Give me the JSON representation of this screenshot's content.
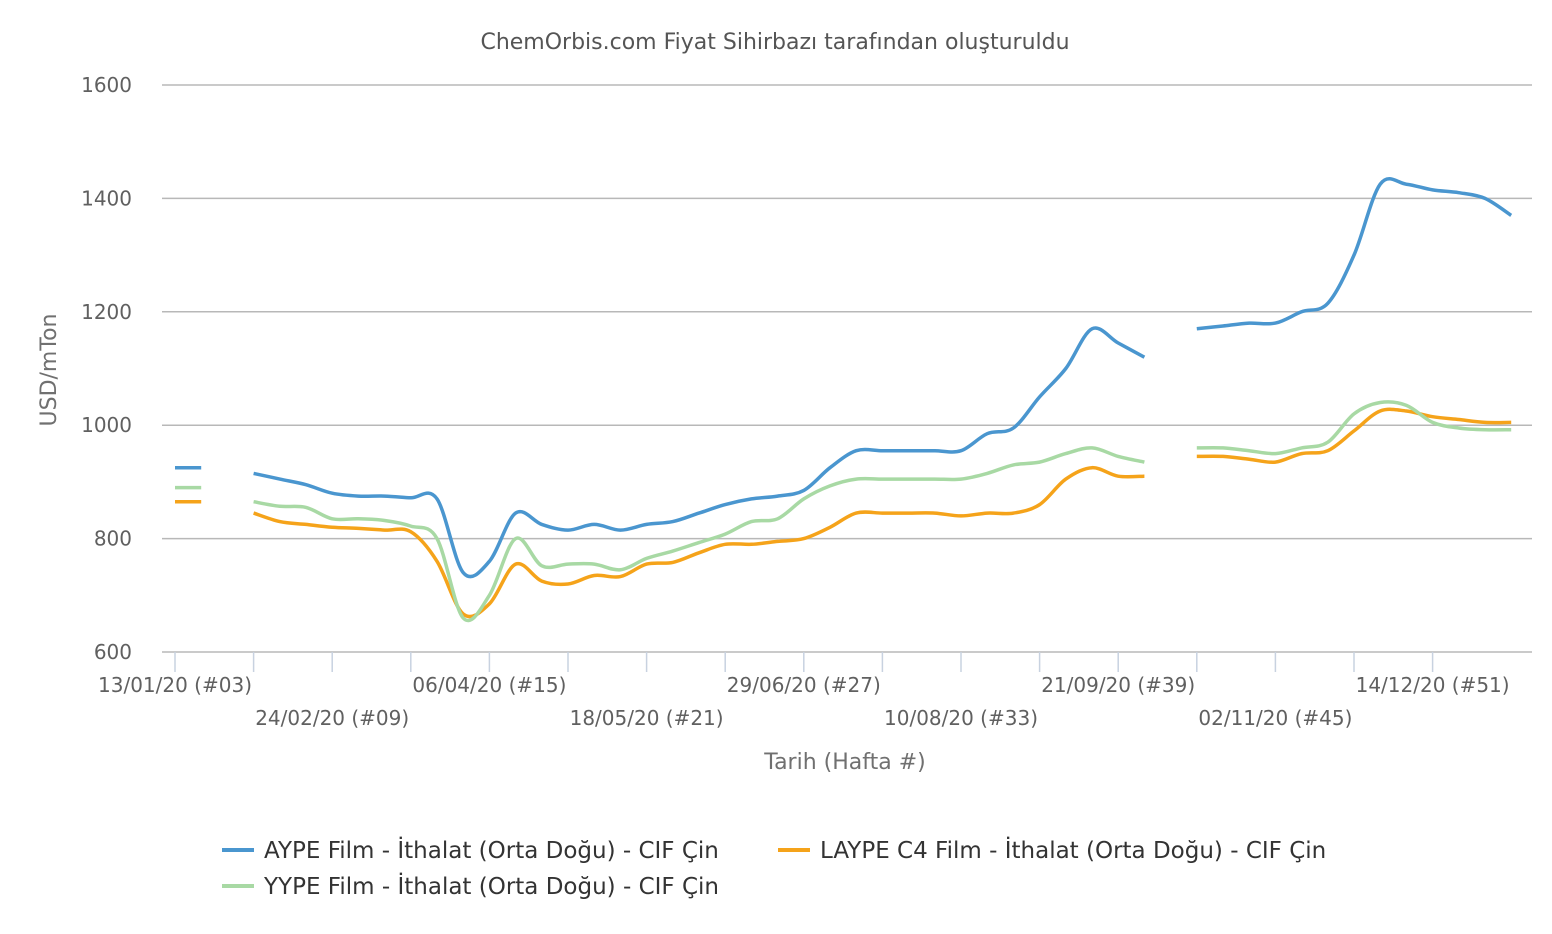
{
  "chart_data": {
    "type": "line",
    "title": "ChemOrbis.com Fiyat Sihirbazı tarafından oluşturuldu",
    "xlabel": "Tarih (Hafta #)",
    "ylabel": "USD/mTon",
    "ylim": [
      600,
      1600
    ],
    "yticks": [
      600,
      800,
      1000,
      1200,
      1400,
      1600
    ],
    "week_range": [
      3,
      52
    ],
    "x_tick_labels": [
      {
        "week": 3,
        "label": "13/01/20 (#03)",
        "row": 0
      },
      {
        "week": 9,
        "label": "24/02/20 (#09)",
        "row": 1
      },
      {
        "week": 15,
        "label": "06/04/20 (#15)",
        "row": 0
      },
      {
        "week": 21,
        "label": "18/05/20 (#21)",
        "row": 1
      },
      {
        "week": 27,
        "label": "29/06/20 (#27)",
        "row": 0
      },
      {
        "week": 33,
        "label": "10/08/20 (#33)",
        "row": 1
      },
      {
        "week": 39,
        "label": "21/09/20 (#39)",
        "row": 0
      },
      {
        "week": 45,
        "label": "02/11/20 (#45)",
        "row": 1
      },
      {
        "week": 51,
        "label": "14/12/20 (#51)",
        "row": 0
      }
    ],
    "legend_position": "bottom-center",
    "grid": true,
    "series": [
      {
        "name": "AYPE Film - İthalat (Orta Doğu) - CIF Çin",
        "color": "#4a96cf",
        "points": [
          [
            3,
            925
          ],
          [
            4,
            925
          ],
          null,
          [
            6,
            915
          ],
          [
            7,
            905
          ],
          [
            8,
            895
          ],
          [
            9,
            880
          ],
          [
            10,
            875
          ],
          [
            11,
            875
          ],
          [
            12,
            872
          ],
          [
            13,
            870
          ],
          [
            14,
            740
          ],
          [
            15,
            760
          ],
          [
            16,
            845
          ],
          [
            17,
            825
          ],
          [
            18,
            815
          ],
          [
            19,
            825
          ],
          [
            20,
            815
          ],
          [
            21,
            825
          ],
          [
            22,
            830
          ],
          [
            23,
            845
          ],
          [
            24,
            860
          ],
          [
            25,
            870
          ],
          [
            26,
            875
          ],
          [
            27,
            885
          ],
          [
            28,
            925
          ],
          [
            29,
            955
          ],
          [
            30,
            955
          ],
          [
            31,
            955
          ],
          [
            32,
            955
          ],
          [
            33,
            955
          ],
          [
            34,
            985
          ],
          [
            35,
            995
          ],
          [
            36,
            1050
          ],
          [
            37,
            1100
          ],
          [
            38,
            1170
          ],
          [
            39,
            1145
          ],
          [
            40,
            1120
          ],
          null,
          [
            42,
            1170
          ],
          [
            43,
            1175
          ],
          [
            44,
            1180
          ],
          [
            45,
            1180
          ],
          [
            46,
            1200
          ],
          [
            47,
            1215
          ],
          [
            48,
            1300
          ],
          [
            49,
            1425
          ],
          [
            50,
            1425
          ],
          [
            51,
            1415
          ],
          [
            52,
            1410
          ],
          [
            53,
            1400
          ],
          [
            54,
            1370
          ]
        ]
      },
      {
        "name": "LAYPE C4 Film - İthalat (Orta Doğu) - CIF Çin",
        "color": "#f5a31a",
        "points": [
          [
            3,
            865
          ],
          [
            4,
            865
          ],
          null,
          [
            6,
            845
          ],
          [
            7,
            830
          ],
          [
            8,
            825
          ],
          [
            9,
            820
          ],
          [
            10,
            818
          ],
          [
            11,
            815
          ],
          [
            12,
            812
          ],
          [
            13,
            760
          ],
          [
            14,
            667
          ],
          [
            15,
            685
          ],
          [
            16,
            755
          ],
          [
            17,
            725
          ],
          [
            18,
            720
          ],
          [
            19,
            735
          ],
          [
            20,
            733
          ],
          [
            21,
            755
          ],
          [
            22,
            758
          ],
          [
            23,
            775
          ],
          [
            24,
            790
          ],
          [
            25,
            790
          ],
          [
            26,
            795
          ],
          [
            27,
            800
          ],
          [
            28,
            820
          ],
          [
            29,
            845
          ],
          [
            30,
            845
          ],
          [
            31,
            845
          ],
          [
            32,
            845
          ],
          [
            33,
            840
          ],
          [
            34,
            845
          ],
          [
            35,
            845
          ],
          [
            36,
            860
          ],
          [
            37,
            905
          ],
          [
            38,
            925
          ],
          [
            39,
            910
          ],
          [
            40,
            910
          ],
          null,
          [
            42,
            945
          ],
          [
            43,
            945
          ],
          [
            44,
            940
          ],
          [
            45,
            935
          ],
          [
            46,
            950
          ],
          [
            47,
            955
          ],
          [
            48,
            990
          ],
          [
            49,
            1025
          ],
          [
            50,
            1025
          ],
          [
            51,
            1015
          ],
          [
            52,
            1010
          ],
          [
            53,
            1005
          ],
          [
            54,
            1005
          ]
        ]
      },
      {
        "name": "YYPE Film - İthalat (Orta Doğu) - CIF Çin",
        "color": "#a8d9a4",
        "points": [
          [
            3,
            890
          ],
          [
            4,
            890
          ],
          null,
          [
            6,
            865
          ],
          [
            7,
            857
          ],
          [
            8,
            855
          ],
          [
            9,
            835
          ],
          [
            10,
            835
          ],
          [
            11,
            832
          ],
          [
            12,
            822
          ],
          [
            13,
            800
          ],
          [
            14,
            660
          ],
          [
            15,
            700
          ],
          [
            16,
            800
          ],
          [
            17,
            752
          ],
          [
            18,
            755
          ],
          [
            19,
            755
          ],
          [
            20,
            745
          ],
          [
            21,
            765
          ],
          [
            22,
            778
          ],
          [
            23,
            793
          ],
          [
            24,
            808
          ],
          [
            25,
            830
          ],
          [
            26,
            835
          ],
          [
            27,
            870
          ],
          [
            28,
            893
          ],
          [
            29,
            905
          ],
          [
            30,
            905
          ],
          [
            31,
            905
          ],
          [
            32,
            905
          ],
          [
            33,
            905
          ],
          [
            34,
            915
          ],
          [
            35,
            930
          ],
          [
            36,
            935
          ],
          [
            37,
            950
          ],
          [
            38,
            960
          ],
          [
            39,
            945
          ],
          [
            40,
            935
          ],
          null,
          [
            42,
            960
          ],
          [
            43,
            960
          ],
          [
            44,
            955
          ],
          [
            45,
            950
          ],
          [
            46,
            960
          ],
          [
            47,
            970
          ],
          [
            48,
            1020
          ],
          [
            49,
            1040
          ],
          [
            50,
            1035
          ],
          [
            51,
            1005
          ],
          [
            52,
            995
          ],
          [
            53,
            992
          ],
          [
            54,
            992
          ]
        ]
      }
    ]
  }
}
